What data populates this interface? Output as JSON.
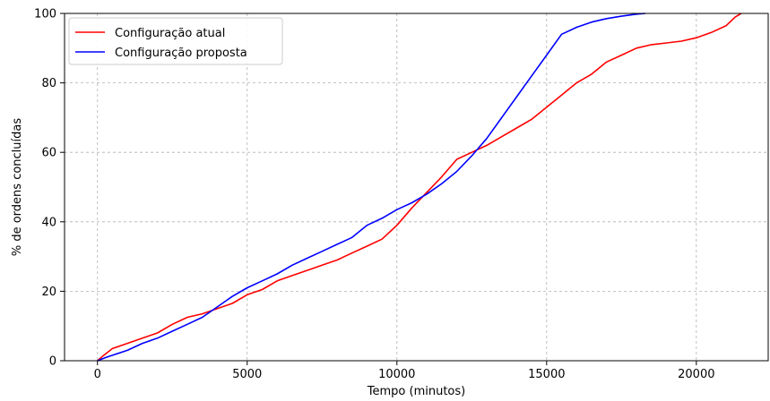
{
  "chart_data": {
    "type": "line",
    "title": "",
    "xlabel": "Tempo (minutos)",
    "ylabel": "% de ordens concluídas",
    "xlim": [
      -1100,
      22400
    ],
    "ylim": [
      0,
      100
    ],
    "xticks": [
      0,
      5000,
      10000,
      15000,
      20000
    ],
    "yticks": [
      0,
      20,
      40,
      60,
      80,
      100
    ],
    "grid": true,
    "grid_style": "dashed",
    "legend_position": "top-left",
    "series": [
      {
        "name": "Configuração atual",
        "color": "#ff0000",
        "x": [
          0,
          200,
          500,
          1000,
          1500,
          2000,
          2500,
          3000,
          3500,
          4000,
          4500,
          5000,
          5500,
          6000,
          6500,
          7000,
          7500,
          8000,
          8500,
          9000,
          9500,
          10000,
          10500,
          11000,
          11500,
          12000,
          12500,
          13000,
          13500,
          14000,
          14500,
          15000,
          15500,
          16000,
          16500,
          17000,
          17500,
          18000,
          18500,
          19000,
          19500,
          20000,
          20500,
          21000,
          21300,
          21500
        ],
        "y": [
          0,
          1.5,
          3.5,
          5,
          6.5,
          8,
          10.5,
          12.5,
          13.5,
          15,
          16.5,
          19,
          20.5,
          23,
          24.5,
          26,
          27.5,
          29,
          31,
          33,
          35,
          39,
          44,
          48.5,
          53,
          58,
          60,
          62,
          64.5,
          67,
          69.5,
          73,
          76.5,
          80,
          82.5,
          86,
          88,
          90,
          91,
          91.5,
          92,
          93,
          94.5,
          96.5,
          99,
          100
        ]
      },
      {
        "name": "Configuração proposta",
        "color": "#0000ff",
        "x": [
          0,
          300,
          1000,
          1500,
          2000,
          2500,
          3000,
          3500,
          4000,
          4500,
          5000,
          5500,
          6000,
          6500,
          7000,
          7500,
          8000,
          8500,
          9000,
          9500,
          10000,
          10500,
          11000,
          11500,
          12000,
          12500,
          13000,
          13500,
          14000,
          14500,
          15000,
          15500,
          16000,
          16500,
          17000,
          17500,
          18000,
          18300
        ],
        "y": [
          0,
          1,
          3,
          5,
          6.5,
          8.5,
          10.5,
          12.5,
          15.5,
          18.5,
          21,
          23,
          25,
          27.5,
          29.5,
          31.5,
          33.5,
          35.5,
          39,
          41,
          43.5,
          45.5,
          48,
          51,
          54.5,
          59,
          64,
          70,
          76,
          82,
          88,
          94,
          96,
          97.5,
          98.5,
          99.2,
          99.8,
          100
        ]
      }
    ]
  }
}
